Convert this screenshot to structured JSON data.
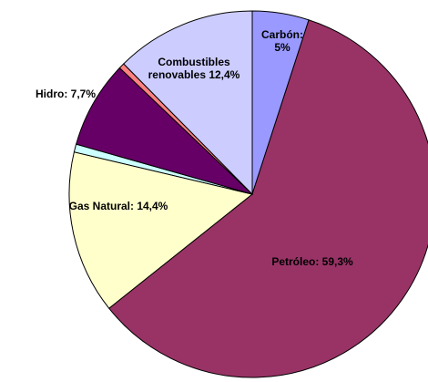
{
  "chart_data": {
    "type": "pie",
    "labels": [
      "Carbón: 5%",
      "Petróleo: 59,3%",
      "Gas Natural: 14,4%",
      null,
      "Hidro: 7,7%",
      null,
      "Combustibles renovables 12,4%"
    ],
    "values": [
      5,
      59.3,
      14.4,
      0.7,
      7.7,
      0.5,
      12.4
    ],
    "colors": [
      "#9999ff",
      "#993366",
      "#ffffcc",
      "#ccffff",
      "#660066",
      "#ff8080",
      "#ccccff"
    ]
  }
}
